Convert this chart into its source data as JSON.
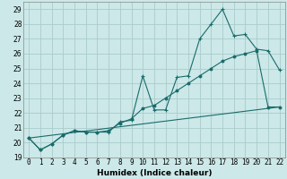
{
  "xlabel": "Humidex (Indice chaleur)",
  "background_color": "#cce8e8",
  "grid_color": "#aacccc",
  "line_color": "#1a6b6b",
  "ylim": [
    19,
    29.5
  ],
  "xlim": [
    -0.5,
    22.5
  ],
  "yticks": [
    19,
    20,
    21,
    22,
    23,
    24,
    25,
    26,
    27,
    28,
    29
  ],
  "xticks": [
    0,
    1,
    2,
    3,
    4,
    5,
    6,
    7,
    8,
    9,
    10,
    11,
    12,
    13,
    14,
    15,
    16,
    17,
    18,
    19,
    20,
    21,
    22
  ],
  "line1_x": [
    0,
    1,
    2,
    3,
    4,
    5,
    6,
    7,
    8,
    9,
    10,
    11,
    12,
    13,
    14,
    15,
    16,
    17,
    18,
    19,
    20,
    21,
    22
  ],
  "line1_y": [
    20.3,
    19.5,
    19.9,
    20.5,
    20.8,
    20.7,
    20.7,
    20.7,
    21.4,
    21.5,
    24.5,
    22.2,
    22.2,
    24.4,
    24.5,
    27.0,
    28.0,
    29.0,
    27.2,
    27.3,
    26.3,
    26.2,
    24.9
  ],
  "line2_x": [
    0,
    1,
    2,
    3,
    4,
    5,
    6,
    7,
    8,
    9,
    10,
    11,
    12,
    13,
    14,
    15,
    16,
    17,
    18,
    19,
    20,
    21,
    22
  ],
  "line2_y": [
    20.3,
    19.5,
    19.9,
    20.5,
    20.8,
    20.7,
    20.7,
    20.8,
    21.3,
    21.6,
    22.3,
    22.5,
    23.0,
    23.5,
    24.0,
    24.5,
    25.0,
    25.5,
    25.8,
    26.0,
    26.2,
    22.4,
    22.4
  ],
  "line3_x": [
    0,
    22
  ],
  "line3_y": [
    20.3,
    22.4
  ],
  "xlabel_fontsize": 6.5,
  "tick_fontsize": 5.5
}
